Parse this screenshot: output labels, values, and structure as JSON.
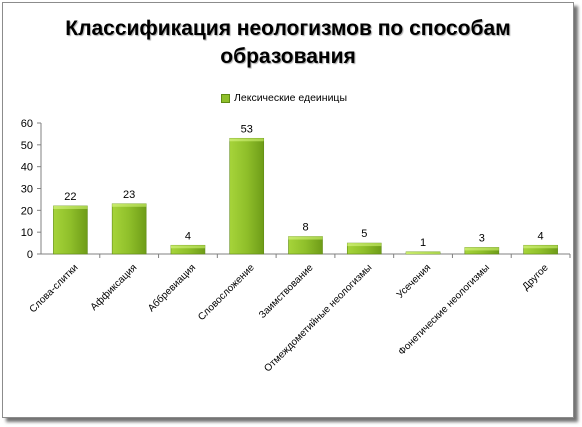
{
  "chart_data": {
    "type": "bar",
    "title_line1": "Классификация неологизмов по способам",
    "title_line2": "образования",
    "legend_position": "top",
    "ylim": [
      0,
      60
    ],
    "yticks": [
      0,
      10,
      20,
      30,
      40,
      50,
      60
    ],
    "grid": false,
    "categories": [
      "Слова-слитки",
      "Аффиксация",
      "Аббревиация",
      "Словосложение",
      "Заимствование",
      "Отмеждометийные неологизмы",
      "Усечения",
      "Фонетические неологизмы",
      "Другое"
    ],
    "series": [
      {
        "name": "Лексические едеиницы",
        "values": [
          22,
          23,
          4,
          53,
          8,
          5,
          1,
          3,
          4
        ],
        "color": "#8fbf2a"
      }
    ]
  }
}
